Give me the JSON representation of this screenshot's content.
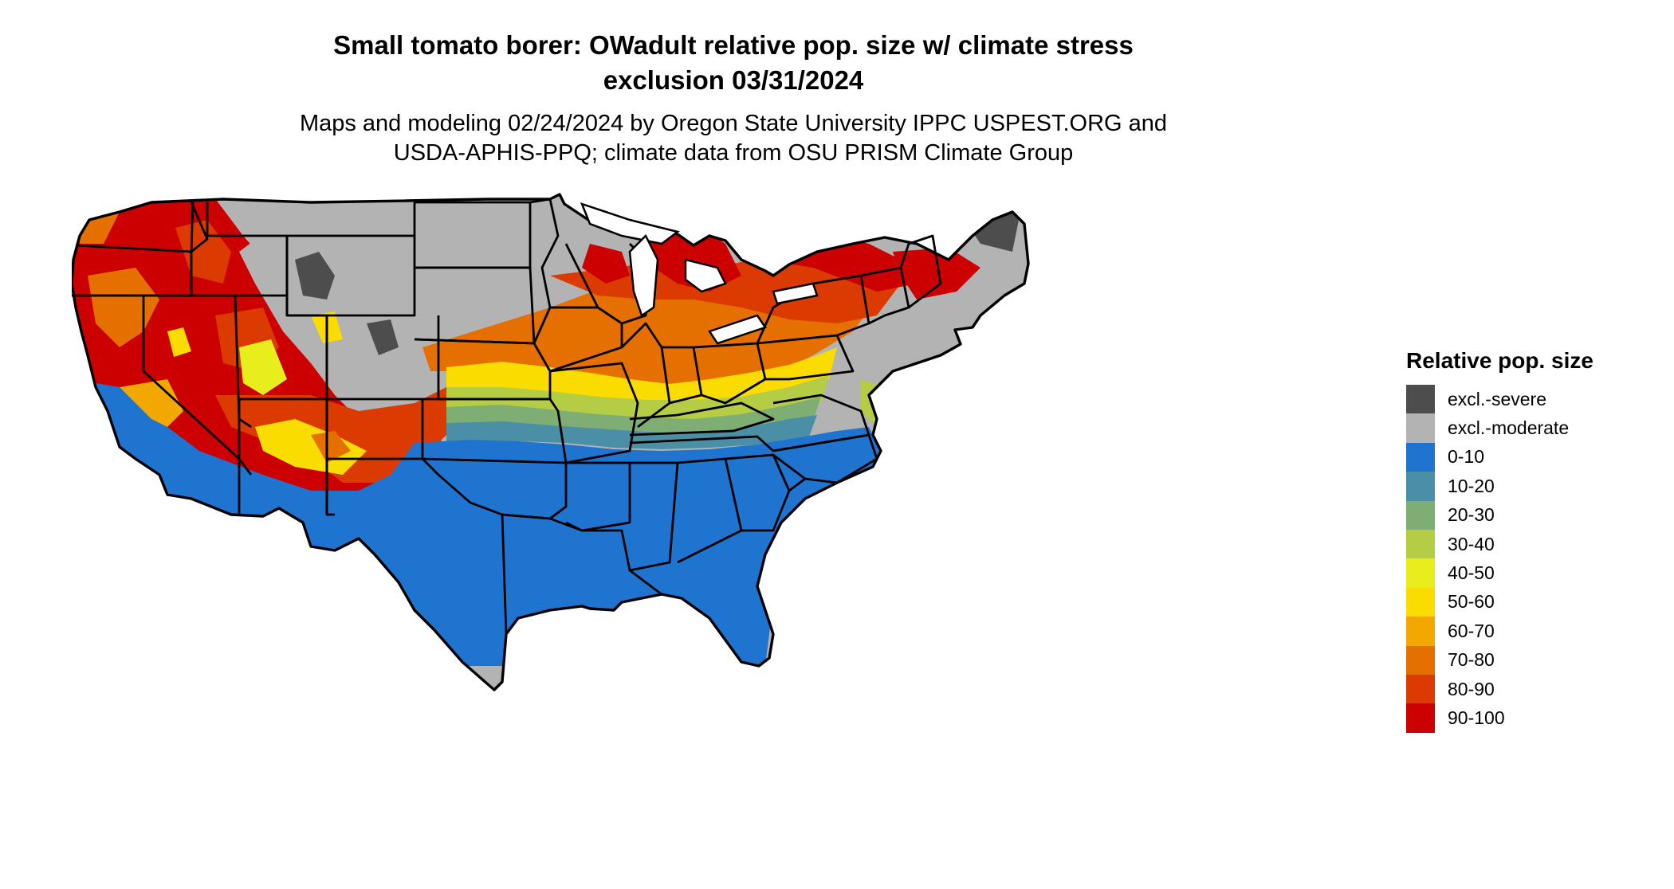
{
  "title": {
    "line1": "Small tomato borer: OWadult relative pop. size w/ climate stress",
    "line2": "exclusion 03/31/2024"
  },
  "subtitle": {
    "line1": "Maps and modeling 02/24/2024 by Oregon State University IPPC USPEST.ORG and",
    "line2": "USDA-APHIS-PPQ; climate data from OSU PRISM Climate Group"
  },
  "legend": {
    "title": "Relative pop. size",
    "items": [
      {
        "label": "excl.-severe",
        "color": "#4d4d4d"
      },
      {
        "label": "excl.-moderate",
        "color": "#b3b3b3"
      },
      {
        "label": "0-10",
        "color": "#1f74d0"
      },
      {
        "label": "10-20",
        "color": "#4a8fa5"
      },
      {
        "label": "20-30",
        "color": "#7fae74"
      },
      {
        "label": "30-40",
        "color": "#b5cc45"
      },
      {
        "label": "40-50",
        "color": "#e7ee1b"
      },
      {
        "label": "50-60",
        "color": "#fadc00"
      },
      {
        "label": "60-70",
        "color": "#f2a800"
      },
      {
        "label": "70-80",
        "color": "#e57000"
      },
      {
        "label": "80-90",
        "color": "#db3a00"
      },
      {
        "label": "90-100",
        "color": "#cc0000"
      }
    ]
  }
}
